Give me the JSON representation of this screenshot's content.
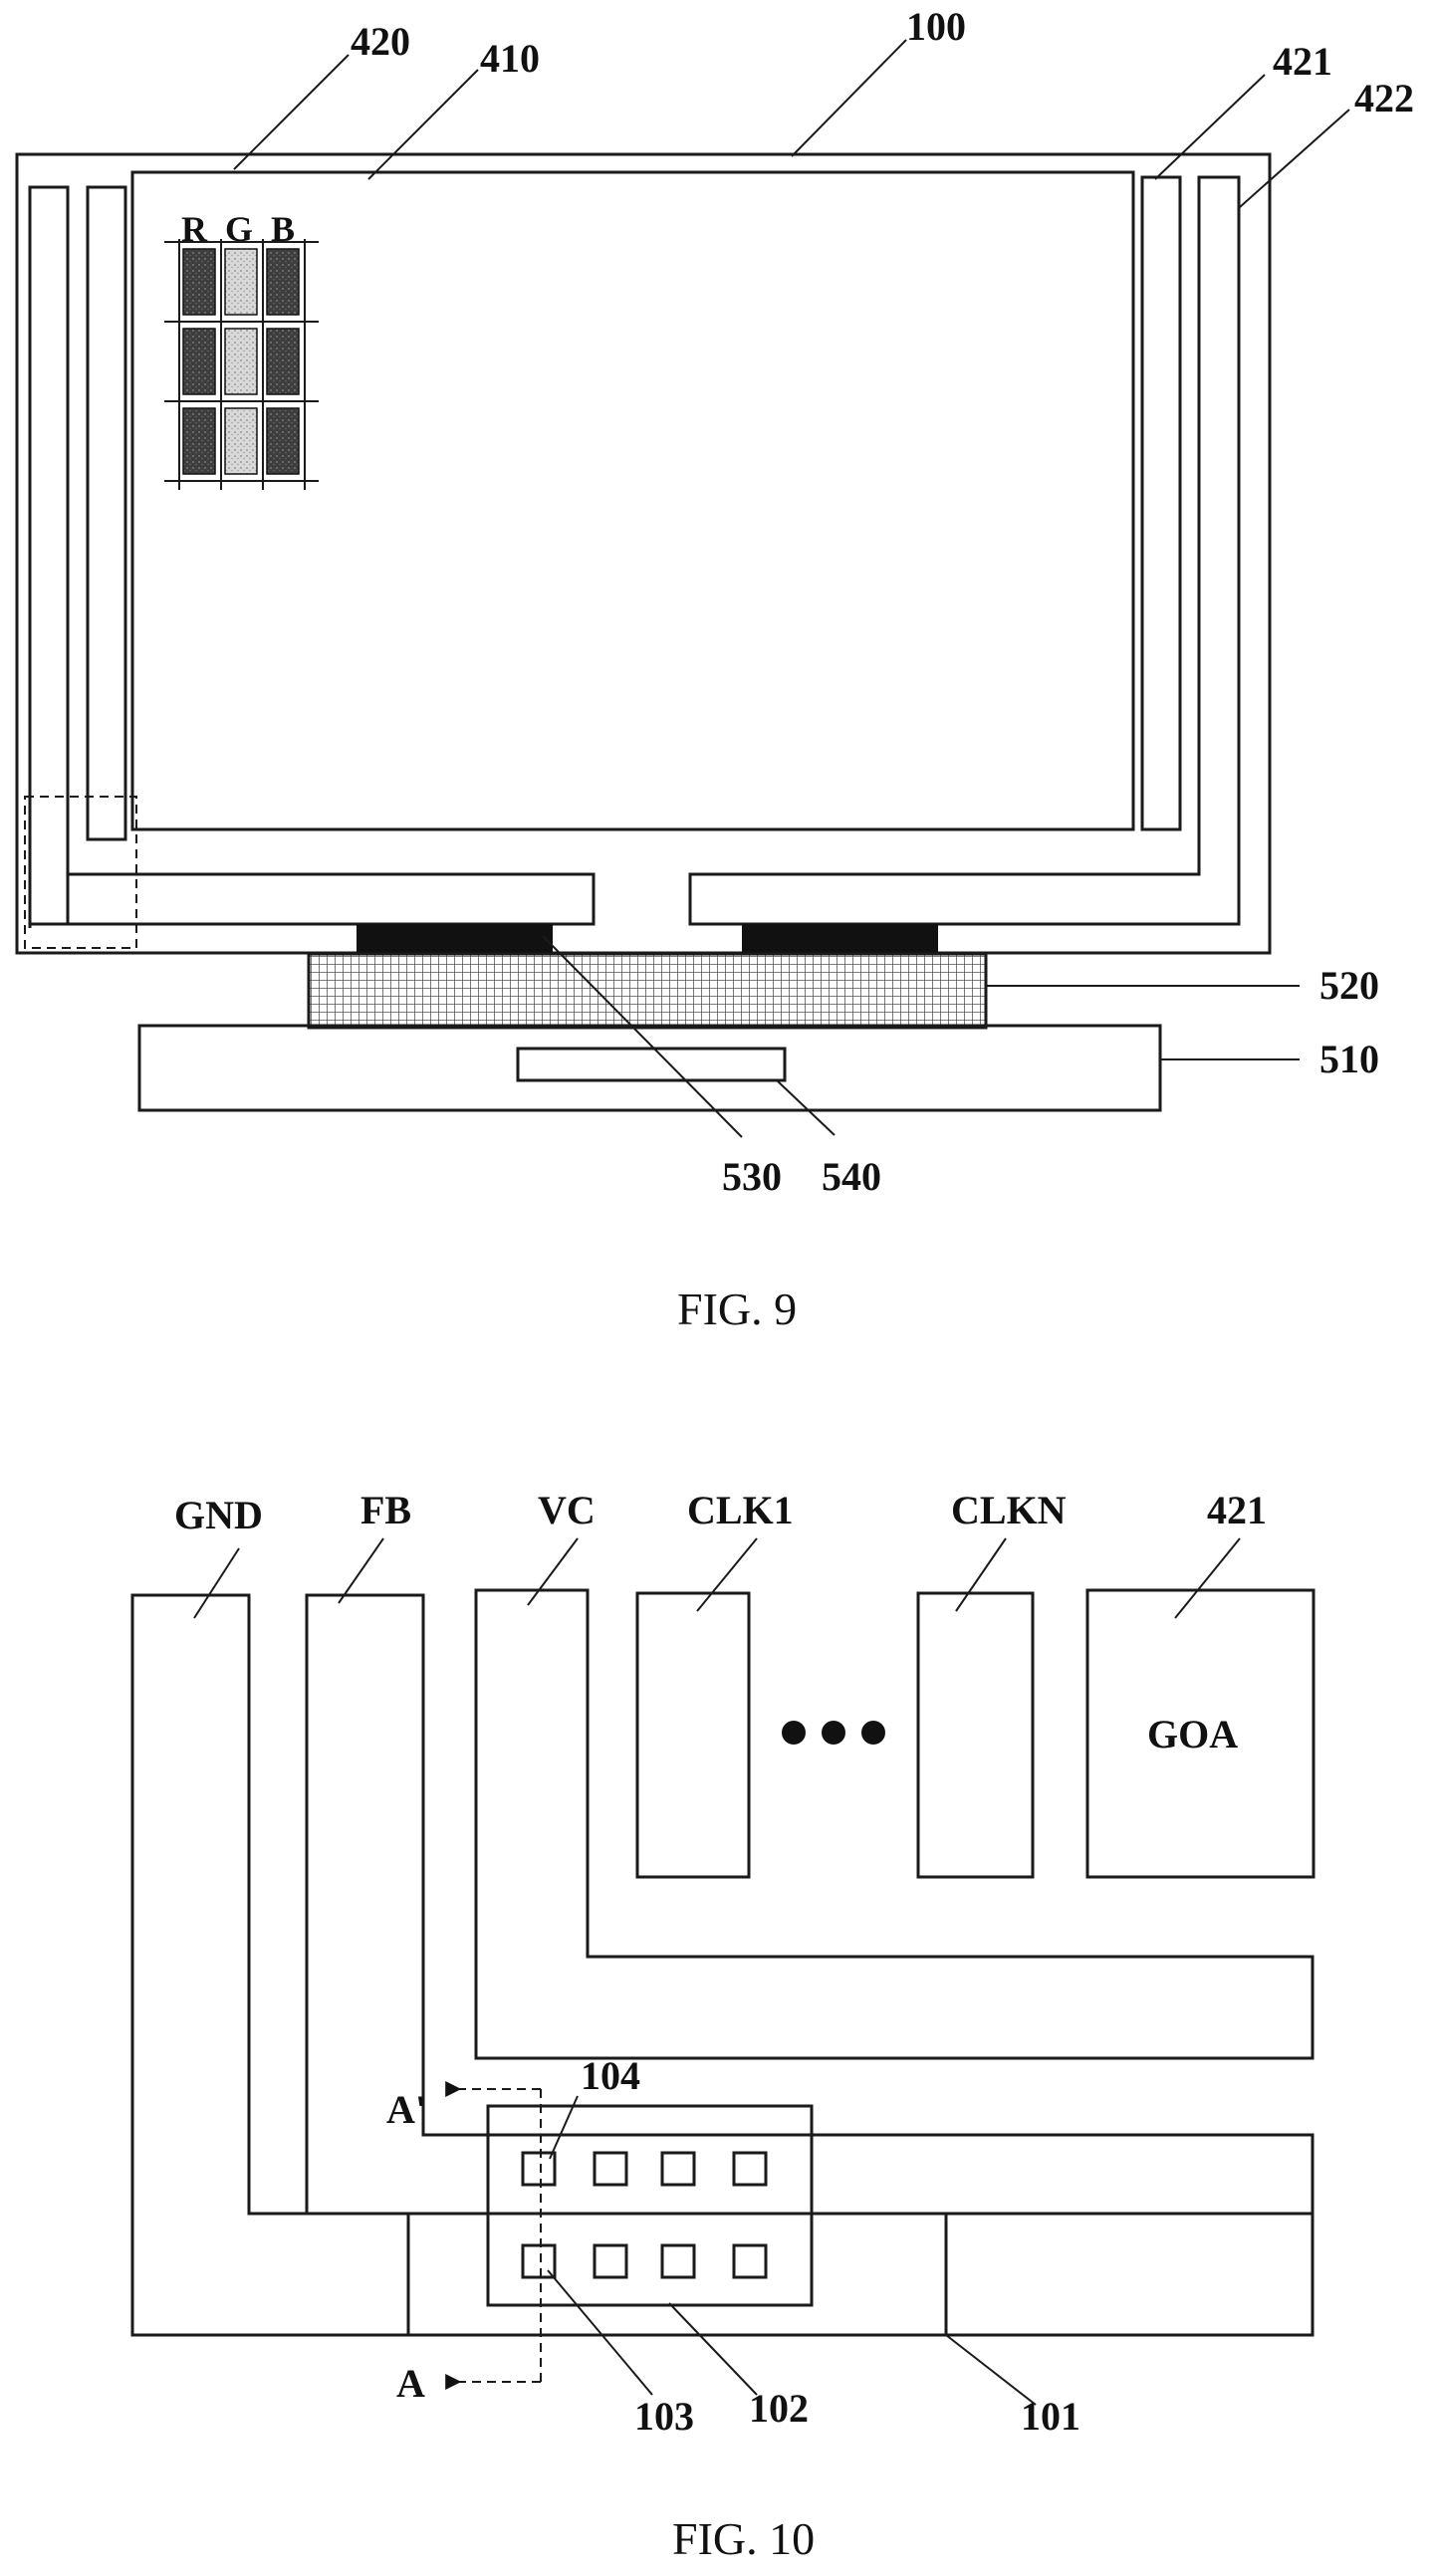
{
  "fig9": {
    "caption": "FIG. 9",
    "labels": {
      "l420": "420",
      "l410": "410",
      "l100": "100",
      "l421": "421",
      "l422": "422",
      "l520": "520",
      "l510": "510",
      "l530": "530",
      "l540": "540"
    },
    "pixel_letters": [
      "R",
      "G",
      "B"
    ]
  },
  "fig10": {
    "caption": "FIG. 10",
    "labels": {
      "gnd": "GND",
      "fb": "FB",
      "vc": "VC",
      "clk1": "CLK1",
      "clkn": "CLKN",
      "l421": "421",
      "goa": "GOA",
      "l104": "104",
      "l103": "103",
      "l102": "102",
      "l101": "101",
      "a_prime": "A'",
      "a": "A"
    }
  },
  "colors": {
    "stroke": "#1a1a1a",
    "red_pixel": "#3a3a3a",
    "green_pixel": "#d8d8d8",
    "blue_pixel": "#4a4a4a",
    "driver_ic": "#111111"
  }
}
